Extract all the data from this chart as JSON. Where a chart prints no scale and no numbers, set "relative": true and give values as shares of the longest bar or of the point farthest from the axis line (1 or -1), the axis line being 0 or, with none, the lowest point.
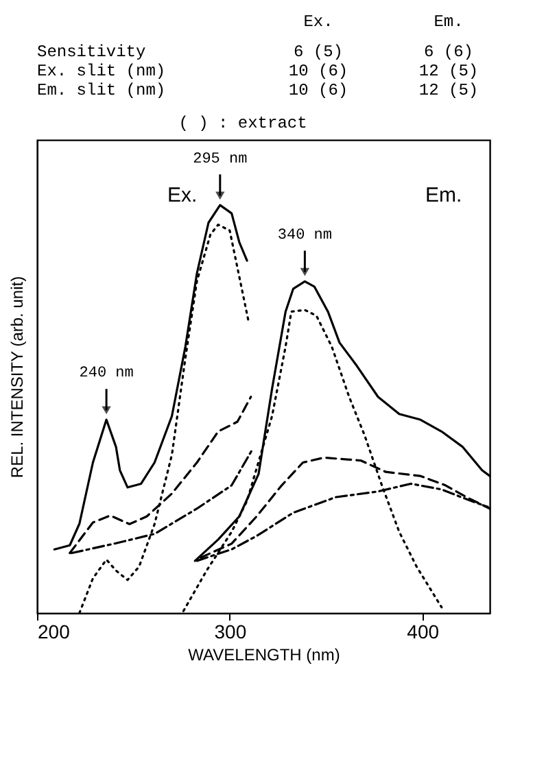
{
  "chart_data": {
    "type": "line",
    "relative": true,
    "xlabel": "WAVELENGTH (nm)",
    "ylabel": "REL. INTENSITY (arb. unit)",
    "xlim": [
      200,
      435
    ],
    "xticks": [
      200,
      300,
      400
    ],
    "grid": false,
    "annotations": [
      "Ex.",
      "Em.",
      "Sensitivity",
      "6 (5)",
      "6 (6)",
      "Ex. slit (nm)",
      "10 (6)",
      "12 (5)",
      "Em. slit (nm)",
      "10 (6)",
      "12 (5)",
      "( ) : extract",
      "Ex.",
      "Em.",
      {
        "text": "240 nm",
        "x": 236,
        "y": 0.474
      },
      {
        "text": "295 nm",
        "x": 295,
        "y": 1.0
      },
      {
        "text": "340 nm",
        "x": 339,
        "y": 0.813
      }
    ],
    "series": [
      {
        "color": "#000000",
        "line_style": "solid",
        "x": [
          209,
          217,
          222,
          229,
          236,
          241,
          243,
          247,
          254,
          261,
          270,
          277,
          283,
          289,
          295,
          301,
          305,
          309
        ],
        "values": [
          0.156,
          0.166,
          0.219,
          0.369,
          0.474,
          0.407,
          0.35,
          0.308,
          0.317,
          0.369,
          0.483,
          0.653,
          0.833,
          0.957,
          1.0,
          0.98,
          0.909,
          0.864
        ]
      },
      {
        "color": "#000000",
        "line_style": "dotted",
        "x": [
          222,
          229,
          236,
          241,
          247,
          253,
          261,
          270,
          277,
          283,
          290,
          294,
          300,
          305,
          310
        ],
        "values": [
          0.0,
          0.085,
          0.131,
          0.104,
          0.081,
          0.114,
          0.218,
          0.388,
          0.625,
          0.814,
          0.928,
          0.952,
          0.938,
          0.824,
          0.71
        ]
      },
      {
        "color": "#000000",
        "line_style": "dashed",
        "x": [
          217,
          229,
          238,
          248,
          257,
          270,
          283,
          294,
          304,
          311
        ],
        "values": [
          0.147,
          0.222,
          0.239,
          0.218,
          0.237,
          0.293,
          0.369,
          0.445,
          0.469,
          0.53
        ]
      },
      {
        "color": "#000000",
        "line_style": "dashdot",
        "x": [
          218,
          240,
          261,
          283,
          301,
          312
        ],
        "values": [
          0.147,
          0.17,
          0.194,
          0.256,
          0.313,
          0.403
        ]
      },
      {
        "color": "#000000",
        "line_style": "solid",
        "x": [
          282,
          294,
          305,
          315,
          322,
          329,
          333,
          339,
          344,
          351,
          357,
          366,
          377,
          388,
          399,
          410,
          421,
          431,
          435
        ],
        "values": [
          0.128,
          0.18,
          0.237,
          0.341,
          0.55,
          0.739,
          0.795,
          0.813,
          0.8,
          0.739,
          0.663,
          0.606,
          0.53,
          0.488,
          0.474,
          0.445,
          0.407,
          0.35,
          0.336
        ]
      },
      {
        "color": "#000000",
        "line_style": "dotted",
        "x": [
          276,
          288,
          301,
          309,
          322,
          329,
          332,
          339,
          345,
          353,
          362,
          370,
          379,
          388,
          397,
          410
        ],
        "values": [
          0.005,
          0.104,
          0.199,
          0.275,
          0.483,
          0.653,
          0.739,
          0.743,
          0.729,
          0.653,
          0.53,
          0.436,
          0.313,
          0.199,
          0.114,
          0.014
        ]
      },
      {
        "color": "#000000",
        "line_style": "dashed",
        "x": [
          285,
          301,
          314,
          327,
          338,
          349,
          368,
          381,
          399,
          412,
          423,
          435
        ],
        "values": [
          0.136,
          0.17,
          0.237,
          0.313,
          0.369,
          0.381,
          0.374,
          0.346,
          0.336,
          0.313,
          0.284,
          0.256
        ]
      },
      {
        "color": "#000000",
        "line_style": "dashdot",
        "x": [
          283,
          301,
          314,
          333,
          355,
          377,
          394,
          410,
          423,
          434
        ],
        "values": [
          0.128,
          0.156,
          0.189,
          0.246,
          0.284,
          0.298,
          0.317,
          0.303,
          0.279,
          0.26
        ]
      }
    ]
  }
}
